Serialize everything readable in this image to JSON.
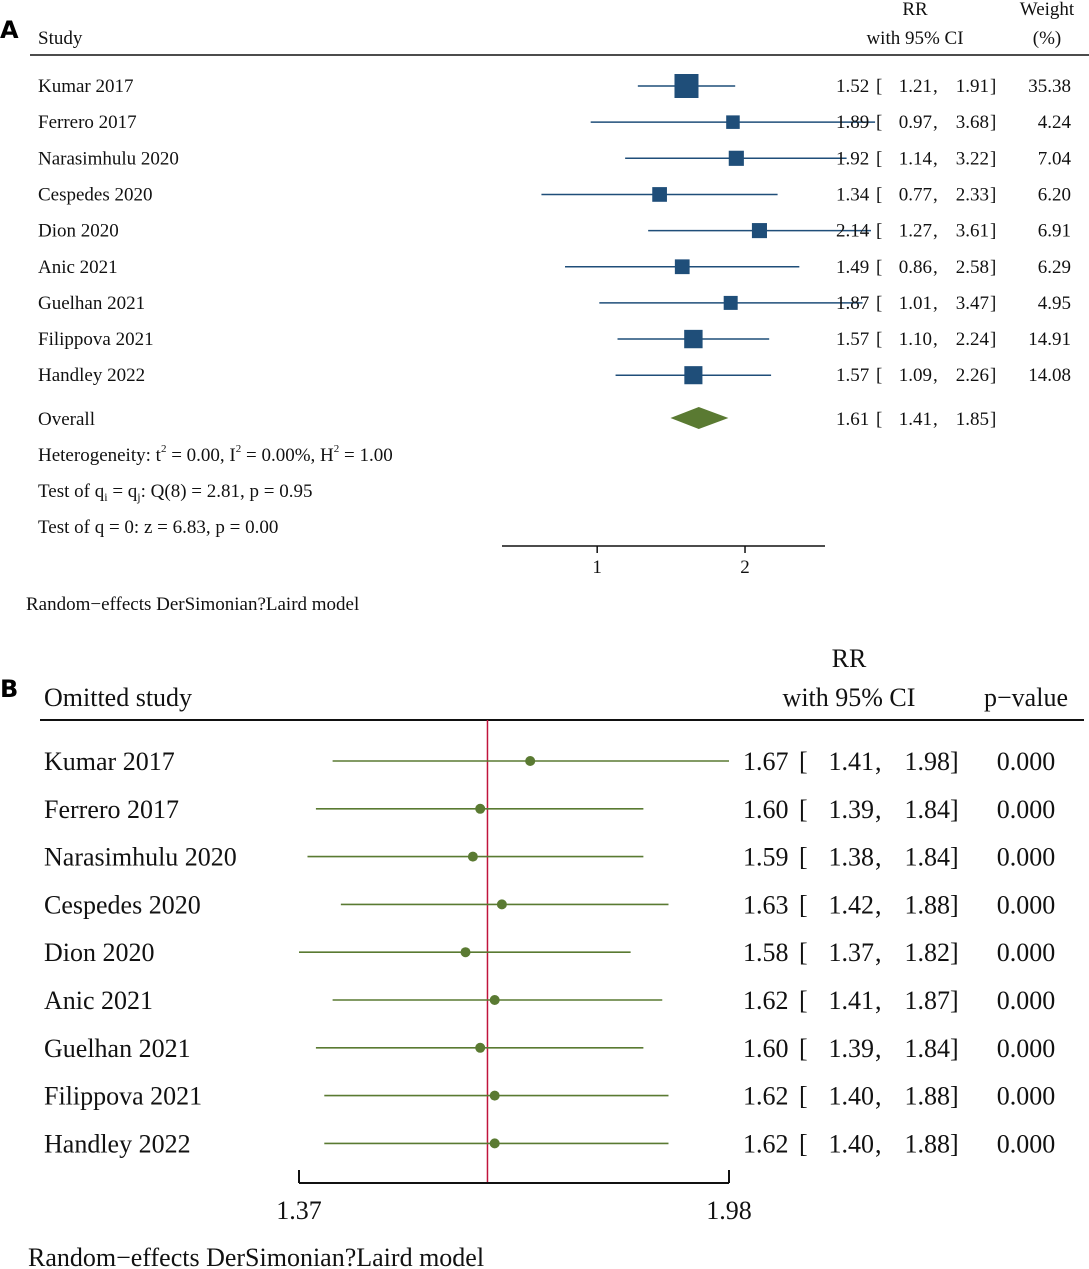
{
  "chart_data": [
    {
      "panel": "A",
      "type": "forest",
      "header": {
        "study": "Study",
        "rr_line1": "RR",
        "rr_line2": "with 95% CI",
        "w_line1": "Weight",
        "w_line2": "(%)"
      },
      "xaxis_ticks": [
        1,
        2
      ],
      "xaxis_range": [
        0.64,
        2.91
      ],
      "studies": [
        {
          "name": "Kumar 2017",
          "rr": 1.52,
          "lo": 1.21,
          "hi": 1.91,
          "weight": 35.38,
          "rr_s": "1.52",
          "lo_s": "1.21",
          "hi_s": "1.91",
          "w_s": "35.38"
        },
        {
          "name": "Ferrero 2017",
          "rr": 1.89,
          "lo": 0.97,
          "hi": 3.68,
          "weight": 4.24,
          "rr_s": "1.89",
          "lo_s": "0.97",
          "hi_s": "3.68",
          "w_s": "4.24"
        },
        {
          "name": "Narasimhulu 2020",
          "rr": 1.92,
          "lo": 1.14,
          "hi": 3.22,
          "weight": 7.04,
          "rr_s": "1.92",
          "lo_s": "1.14",
          "hi_s": "3.22",
          "w_s": "7.04"
        },
        {
          "name": "Cespedes 2020",
          "rr": 1.34,
          "lo": 0.77,
          "hi": 2.33,
          "weight": 6.2,
          "rr_s": "1.34",
          "lo_s": "0.77",
          "hi_s": "2.33",
          "w_s": "6.20"
        },
        {
          "name": "Dion 2020",
          "rr": 2.14,
          "lo": 1.27,
          "hi": 3.61,
          "weight": 6.91,
          "rr_s": "2.14",
          "lo_s": "1.27",
          "hi_s": "3.61",
          "w_s": "6.91"
        },
        {
          "name": "Anic 2021",
          "rr": 1.49,
          "lo": 0.86,
          "hi": 2.58,
          "weight": 6.29,
          "rr_s": "1.49",
          "lo_s": "0.86",
          "hi_s": "2.58",
          "w_s": "6.29"
        },
        {
          "name": "Guelhan 2021",
          "rr": 1.87,
          "lo": 1.01,
          "hi": 3.47,
          "weight": 4.95,
          "rr_s": "1.87",
          "lo_s": "1.01",
          "hi_s": "3.47",
          "w_s": "4.95"
        },
        {
          "name": "Filippova 2021",
          "rr": 1.57,
          "lo": 1.1,
          "hi": 2.24,
          "weight": 14.91,
          "rr_s": "1.57",
          "lo_s": "1.10",
          "hi_s": "2.24",
          "w_s": "14.91"
        },
        {
          "name": "Handley 2022",
          "rr": 1.57,
          "lo": 1.09,
          "hi": 2.26,
          "weight": 14.08,
          "rr_s": "1.57",
          "lo_s": "1.09",
          "hi_s": "2.26",
          "w_s": "14.08"
        }
      ],
      "overall": {
        "name": "Overall",
        "rr": 1.61,
        "lo": 1.41,
        "hi": 1.85,
        "rr_s": "1.61",
        "lo_s": "1.41",
        "hi_s": "1.85"
      },
      "stats": {
        "heterogeneity": {
          "prefix": "Heterogeneity: ",
          "tau_sym": "t",
          "tau_rest": " = 0.00, I",
          "i_rest": " = 0.00%, H",
          "h_rest": " = 1.00",
          "sup": "2"
        },
        "test_equal": {
          "prefix": "Test of q",
          "sub_i": "i",
          "mid": " = q",
          "sub_j": "j",
          "rest": ": Q(8) = 2.81, p = 0.95"
        },
        "test_zero": "Test of q = 0: z = 6.83, p = 0.00"
      },
      "footnote": "Random−effects DerSimonian?Laird model",
      "colors": {
        "marker": "#1f4e79",
        "diamond": "#5a7a32"
      }
    },
    {
      "panel": "B",
      "type": "forest",
      "header": {
        "study": "Omitted study",
        "rr_line1": "RR",
        "rr_line2": "with 95% CI",
        "p": "p−value"
      },
      "xaxis_ticks": [
        1.37,
        1.98
      ],
      "xaxis_tick_labels": [
        "1.37",
        "1.98"
      ],
      "xaxis_range": [
        1.37,
        1.98
      ],
      "reference_line": 1.61,
      "studies": [
        {
          "name": "Kumar 2017",
          "rr": 1.67,
          "lo": 1.41,
          "hi": 1.98,
          "rr_s": "1.67",
          "lo_s": "1.41",
          "hi_s": "1.98",
          "p": "0.000"
        },
        {
          "name": "Ferrero 2017",
          "rr": 1.6,
          "lo": 1.39,
          "hi": 1.84,
          "rr_s": "1.60",
          "lo_s": "1.39",
          "hi_s": "1.84",
          "p": "0.000"
        },
        {
          "name": "Narasimhulu 2020",
          "rr": 1.59,
          "lo": 1.38,
          "hi": 1.84,
          "rr_s": "1.59",
          "lo_s": "1.38",
          "hi_s": "1.84",
          "p": "0.000"
        },
        {
          "name": "Cespedes 2020",
          "rr": 1.63,
          "lo": 1.42,
          "hi": 1.88,
          "rr_s": "1.63",
          "lo_s": "1.42",
          "hi_s": "1.88",
          "p": "0.000"
        },
        {
          "name": "Dion 2020",
          "rr": 1.58,
          "lo": 1.37,
          "hi": 1.82,
          "rr_s": "1.58",
          "lo_s": "1.37",
          "hi_s": "1.82",
          "p": "0.000"
        },
        {
          "name": "Anic 2021",
          "rr": 1.62,
          "lo": 1.41,
          "hi": 1.87,
          "rr_s": "1.62",
          "lo_s": "1.41",
          "hi_s": "1.87",
          "p": "0.000"
        },
        {
          "name": "Guelhan 2021",
          "rr": 1.6,
          "lo": 1.39,
          "hi": 1.84,
          "rr_s": "1.60",
          "lo_s": "1.39",
          "hi_s": "1.84",
          "p": "0.000"
        },
        {
          "name": "Filippova 2021",
          "rr": 1.62,
          "lo": 1.4,
          "hi": 1.88,
          "rr_s": "1.62",
          "lo_s": "1.40",
          "hi_s": "1.88",
          "p": "0.000"
        },
        {
          "name": "Handley 2022",
          "rr": 1.62,
          "lo": 1.4,
          "hi": 1.88,
          "rr_s": "1.62",
          "lo_s": "1.40",
          "hi_s": "1.88",
          "p": "0.000"
        }
      ],
      "footnote": "Random−effects DerSimonian?Laird model",
      "colors": {
        "marker": "#5a7a32",
        "reference": "#c0143c"
      }
    }
  ]
}
